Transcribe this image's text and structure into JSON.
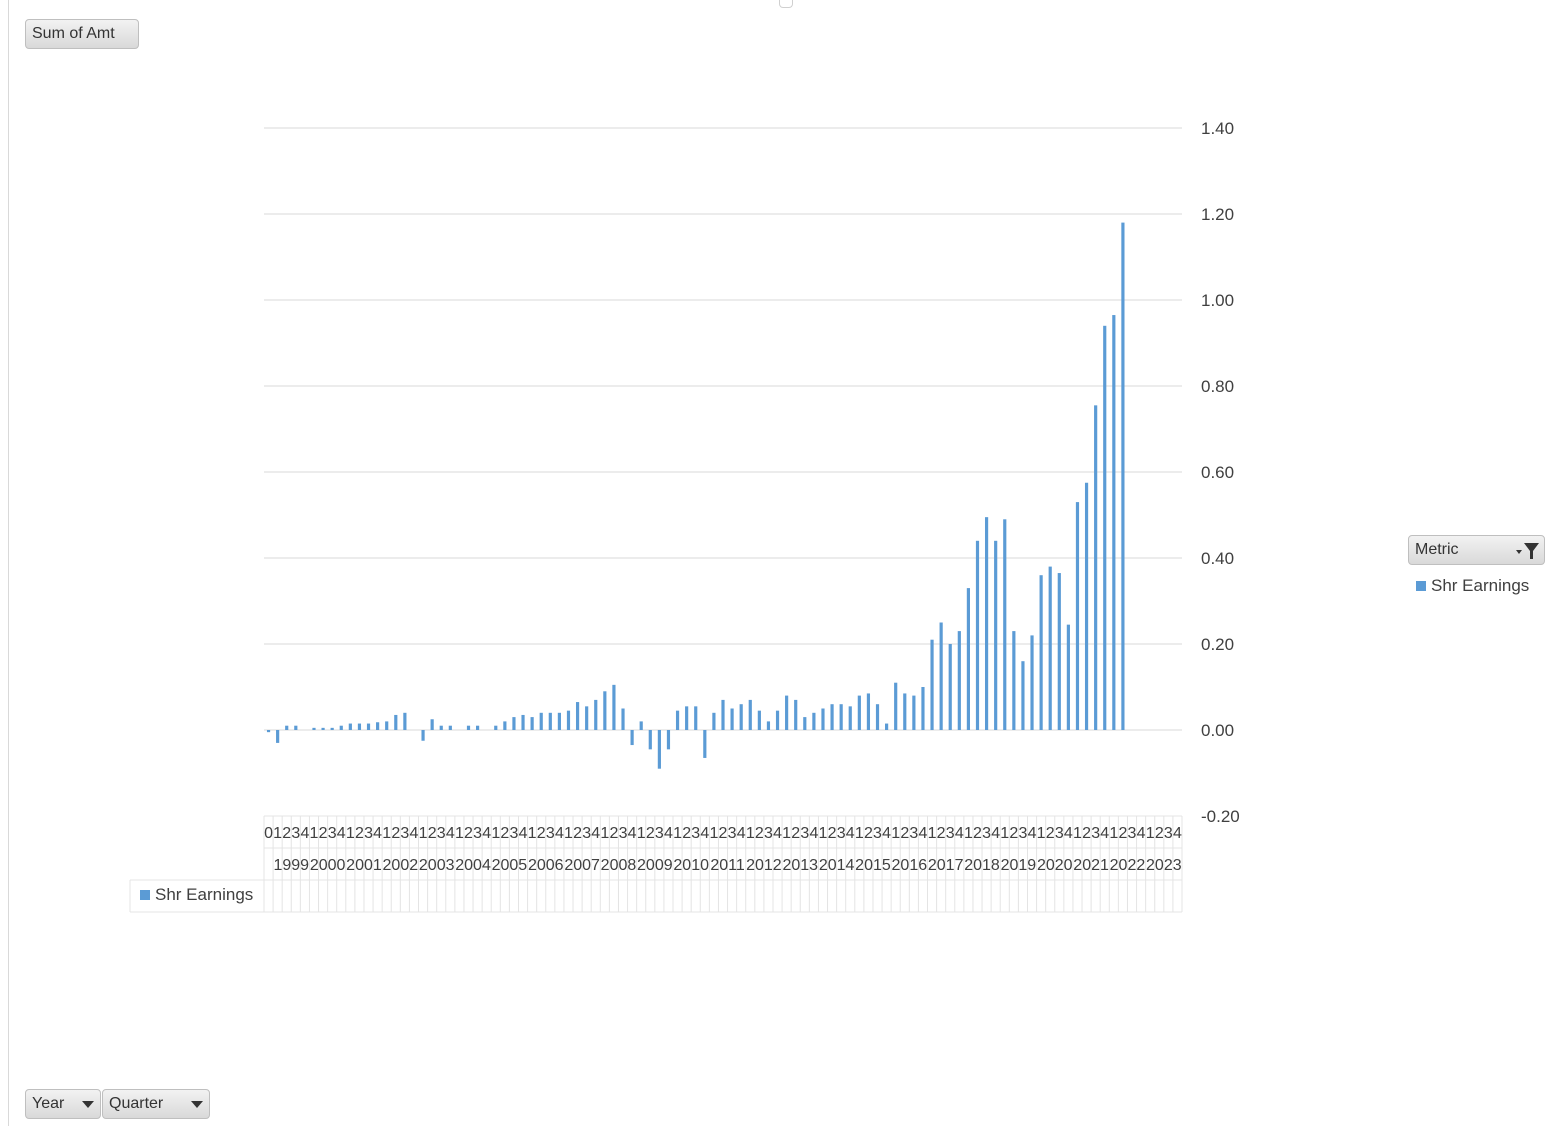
{
  "pivot": {
    "values_field": "Sum of Amt",
    "axis_fields": [
      "Year",
      "Quarter"
    ],
    "legend_field": "Metric"
  },
  "legend": {
    "series_label": "Shr Earnings"
  },
  "colors": {
    "bar": "#5b9bd5",
    "grid": "#d9d9d9",
    "text": "#404040"
  },
  "icons": {
    "legend_filter": "funnel-filter-icon",
    "dropdown": "chevron-down-icon"
  },
  "chart_data": {
    "type": "bar",
    "title": "",
    "xlabel": "",
    "ylabel": "",
    "ylim": [
      -0.2,
      1.4
    ],
    "yticks": [
      "-0.20",
      "0.00",
      "0.20",
      "0.40",
      "0.60",
      "0.80",
      "1.00",
      "1.20",
      "1.40"
    ],
    "y_axis_position": "right",
    "grid": true,
    "legend": "right",
    "years": [
      "1999",
      "2000",
      "2001",
      "2002",
      "2003",
      "2004",
      "2005",
      "2006",
      "2007",
      "2008",
      "2009",
      "2010",
      "2011",
      "2012",
      "2013",
      "2014",
      "2015",
      "2016",
      "2017",
      "2018",
      "2019",
      "2020",
      "2021",
      "2022",
      "2023"
    ],
    "quarter_labels": [
      "0",
      "1",
      "2",
      "3",
      "4",
      "1",
      "2",
      "3",
      "4",
      "1",
      "2",
      "3",
      "4",
      "1",
      "2",
      "3",
      "4",
      "1",
      "2",
      "3",
      "4",
      "1",
      "2",
      "3",
      "4",
      "1",
      "2",
      "3",
      "4",
      "1",
      "2",
      "3",
      "4",
      "1",
      "2",
      "3",
      "4",
      "1",
      "2",
      "3",
      "4",
      "1",
      "2",
      "3",
      "4",
      "1",
      "2",
      "3",
      "4",
      "1",
      "2",
      "3",
      "4",
      "1",
      "2",
      "3",
      "4",
      "1",
      "2",
      "3",
      "4",
      "1",
      "2",
      "3",
      "4",
      "1",
      "2",
      "3",
      "4",
      "1",
      "2",
      "3",
      "4",
      "1",
      "2",
      "3",
      "4",
      "1",
      "2",
      "3",
      "4",
      "1",
      "2",
      "3",
      "4",
      "1",
      "2",
      "3",
      "4",
      "1",
      "2",
      "3",
      "4",
      "1",
      "2",
      "3",
      "4",
      "1",
      "2",
      "3",
      "4"
    ],
    "series": [
      {
        "name": "Shr Earnings",
        "values": [
          -0.005,
          -0.03,
          0.01,
          0.01,
          null,
          0.005,
          0.005,
          0.005,
          0.01,
          0.015,
          0.015,
          0.015,
          0.018,
          0.02,
          0.035,
          0.04,
          null,
          -0.025,
          0.025,
          0.01,
          0.01,
          null,
          0.01,
          0.01,
          null,
          0.01,
          0.02,
          0.03,
          0.035,
          0.03,
          0.04,
          0.04,
          0.04,
          0.045,
          0.065,
          0.055,
          0.07,
          0.09,
          0.105,
          0.05,
          -0.035,
          0.02,
          -0.045,
          -0.09,
          -0.045,
          0.045,
          0.055,
          0.055,
          -0.065,
          0.04,
          0.07,
          0.05,
          0.06,
          0.07,
          0.045,
          0.02,
          0.045,
          0.08,
          0.07,
          0.03,
          0.04,
          0.05,
          0.06,
          0.06,
          0.055,
          0.08,
          0.085,
          0.06,
          0.015,
          0.11,
          0.085,
          0.08,
          0.1,
          0.21,
          0.25,
          0.2,
          0.23,
          0.33,
          0.44,
          0.495,
          0.44,
          0.49,
          0.23,
          0.16,
          0.22,
          0.36,
          0.38,
          0.365,
          0.245,
          0.53,
          0.575,
          0.755,
          0.94,
          0.965,
          1.18,
          null,
          null,
          null,
          null,
          null,
          null
        ]
      }
    ]
  }
}
